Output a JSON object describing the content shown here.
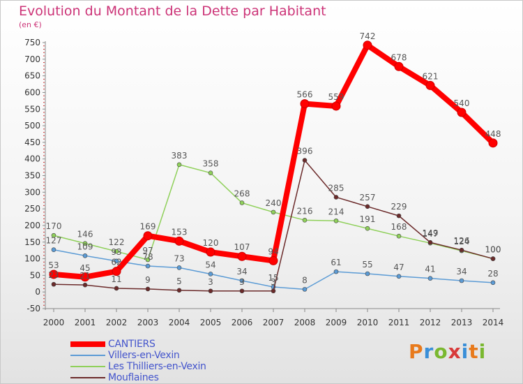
{
  "header": {
    "title": "Evolution du Montant de la Dette par Habitant",
    "unit": "(en €)"
  },
  "logo": {
    "text": "Proxiti",
    "colors": [
      "#e87a1c",
      "#3a8fd8",
      "#7ab830",
      "#d83a3a",
      "#3a8fd8",
      "#e87a1c",
      "#7ab830"
    ]
  },
  "chart_data": {
    "type": "line",
    "x": [
      "2000",
      "2001",
      "2002",
      "2003",
      "2004",
      "2005",
      "2006",
      "2007",
      "2008",
      "2009",
      "2010",
      "2011",
      "2012",
      "2013",
      "2014"
    ],
    "ylim": [
      -50,
      750
    ],
    "yticks": [
      -50,
      0,
      50,
      100,
      150,
      200,
      250,
      300,
      350,
      400,
      450,
      500,
      550,
      600,
      650,
      700,
      750
    ],
    "grid": false,
    "legend_position": "bottom-left",
    "series": [
      {
        "name": "Villers-en-Vexin",
        "color": "#5b9bd5",
        "values": [
          127,
          109,
          93,
          78,
          73,
          54,
          34,
          15,
          8,
          61,
          55,
          47,
          41,
          34,
          28
        ],
        "labels": [
          "127",
          "109",
          "93",
          "78",
          "73",
          "54",
          "34",
          "15",
          "8",
          "61",
          "55",
          "47",
          "41",
          "34",
          "28"
        ]
      },
      {
        "name": "Les Thilliers-en-Vexin",
        "color": "#8fd05a",
        "values": [
          170,
          146,
          122,
          97,
          383,
          358,
          268,
          240,
          216,
          214,
          191,
          168,
          147,
          124,
          100
        ],
        "labels": [
          "170",
          "146",
          "122",
          "97",
          "383",
          "358",
          "268",
          "240",
          "216",
          "214",
          "191",
          "168",
          "147",
          "124",
          "100"
        ]
      },
      {
        "name": "Mouflaines",
        "color": "#6b2a2a",
        "values": [
          23,
          21,
          11,
          9,
          5,
          3,
          3,
          3,
          396,
          285,
          257,
          229,
          149,
          126,
          100
        ],
        "labels": [
          "23",
          "21",
          "11",
          "9",
          "5",
          "3",
          "3",
          "3",
          "396",
          "285",
          "257",
          "229",
          "149",
          "126",
          "100"
        ]
      },
      {
        "name": "CANTIERS",
        "color": "#ff0000",
        "values": [
          53,
          45,
          62,
          169,
          153,
          120,
          107,
          94,
          566,
          559,
          742,
          678,
          621,
          540,
          448
        ],
        "labels": [
          "53",
          "45",
          "62",
          "169",
          "153",
          "120",
          "107",
          "94",
          "566",
          "559",
          "742",
          "678",
          "621",
          "540",
          "448"
        ]
      }
    ]
  }
}
